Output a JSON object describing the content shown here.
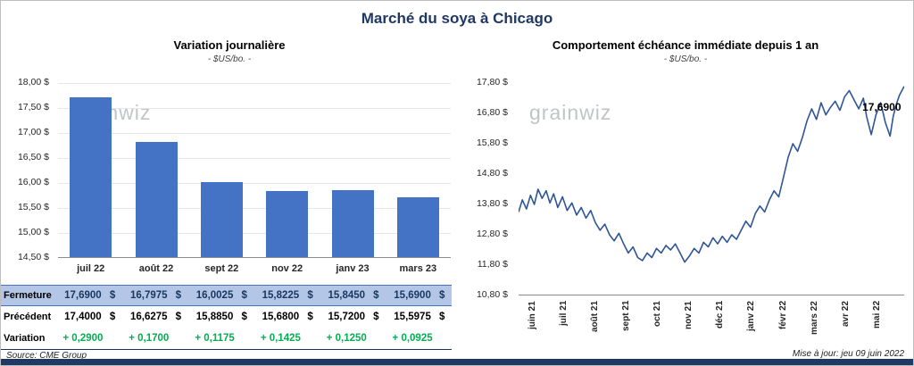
{
  "page_title": "Marché du soya à Chicago",
  "watermark": "grainwiz",
  "footer": {
    "source": "Source: CME Group",
    "updated": "Mise à jour: jeu 09 juin 2022"
  },
  "colors": {
    "bar": "#4472C4",
    "line": "#2F5597",
    "table_highlight": "#B4C6E7",
    "table_highlight_border": "#4472C4",
    "variation_green": "#00B050",
    "accent_dark": "#1F3864"
  },
  "chart_data": [
    {
      "type": "bar",
      "title": "Variation journalière",
      "subtitle": "- $US/bo. -",
      "categories": [
        "juil 22",
        "août 22",
        "sept 22",
        "nov 22",
        "janv 23",
        "mars 23"
      ],
      "values": [
        17.69,
        16.7975,
        16.0025,
        15.8225,
        15.845,
        15.69
      ],
      "ylim": [
        14.5,
        18.0
      ],
      "ytick_values": [
        18.0,
        17.5,
        17.0,
        16.5,
        16.0,
        15.5,
        15.0,
        14.5
      ],
      "ytick_labels": [
        "18,00 $",
        "17,50 $",
        "17,00 $",
        "16,50 $",
        "16,00 $",
        "15,50 $",
        "15,00 $",
        "14,50 $"
      ],
      "grid": true,
      "legend": "none"
    },
    {
      "type": "line",
      "title": "Comportement échéance immédiate depuis 1 an",
      "subtitle": "- $US/bo. -",
      "x_labels": [
        "juin 21",
        "juil 21",
        "août 21",
        "sept 21",
        "oct 21",
        "nov 21",
        "déc 21",
        "janv 22",
        "févr 22",
        "mars 22",
        "avr 22",
        "mai 22"
      ],
      "x_max": 12.3,
      "ylim": [
        10.8,
        17.8
      ],
      "ytick_values": [
        17.8,
        16.8,
        15.8,
        14.8,
        13.8,
        12.8,
        11.8,
        10.8
      ],
      "ytick_labels": [
        "17,80 $",
        "16,80 $",
        "15,80 $",
        "14,80 $",
        "13,80 $",
        "12,80 $",
        "11,80 $",
        "10,80 $"
      ],
      "grid": false,
      "legend": "none",
      "annotation": {
        "text": "17,6900",
        "x": 12.2,
        "y": 17.0
      },
      "points": [
        [
          0.0,
          13.55
        ],
        [
          0.12,
          13.95
        ],
        [
          0.25,
          13.65
        ],
        [
          0.38,
          14.1
        ],
        [
          0.5,
          13.8
        ],
        [
          0.62,
          14.3
        ],
        [
          0.75,
          14.0
        ],
        [
          0.88,
          14.25
        ],
        [
          1.0,
          13.85
        ],
        [
          1.12,
          14.15
        ],
        [
          1.25,
          13.7
        ],
        [
          1.4,
          14.05
        ],
        [
          1.55,
          13.6
        ],
        [
          1.7,
          13.85
        ],
        [
          1.85,
          13.45
        ],
        [
          2.0,
          13.7
        ],
        [
          2.15,
          13.35
        ],
        [
          2.3,
          13.6
        ],
        [
          2.45,
          13.2
        ],
        [
          2.6,
          12.95
        ],
        [
          2.75,
          13.15
        ],
        [
          2.9,
          12.8
        ],
        [
          3.05,
          12.6
        ],
        [
          3.2,
          12.85
        ],
        [
          3.35,
          12.5
        ],
        [
          3.5,
          12.2
        ],
        [
          3.65,
          12.4
        ],
        [
          3.8,
          12.05
        ],
        [
          3.95,
          11.95
        ],
        [
          4.1,
          12.2
        ],
        [
          4.25,
          12.05
        ],
        [
          4.4,
          12.35
        ],
        [
          4.55,
          12.2
        ],
        [
          4.7,
          12.45
        ],
        [
          4.85,
          12.3
        ],
        [
          5.0,
          12.5
        ],
        [
          5.15,
          12.2
        ],
        [
          5.3,
          11.9
        ],
        [
          5.45,
          12.1
        ],
        [
          5.6,
          12.35
        ],
        [
          5.75,
          12.2
        ],
        [
          5.9,
          12.55
        ],
        [
          6.05,
          12.4
        ],
        [
          6.2,
          12.7
        ],
        [
          6.35,
          12.5
        ],
        [
          6.5,
          12.75
        ],
        [
          6.65,
          12.55
        ],
        [
          6.8,
          12.8
        ],
        [
          6.95,
          12.65
        ],
        [
          7.1,
          12.95
        ],
        [
          7.25,
          13.25
        ],
        [
          7.4,
          13.05
        ],
        [
          7.55,
          13.5
        ],
        [
          7.7,
          13.75
        ],
        [
          7.85,
          13.55
        ],
        [
          8.0,
          13.95
        ],
        [
          8.15,
          14.25
        ],
        [
          8.3,
          14.05
        ],
        [
          8.45,
          14.7
        ],
        [
          8.6,
          15.35
        ],
        [
          8.75,
          15.8
        ],
        [
          8.9,
          15.55
        ],
        [
          9.05,
          16.0
        ],
        [
          9.2,
          16.55
        ],
        [
          9.35,
          16.95
        ],
        [
          9.5,
          16.6
        ],
        [
          9.65,
          17.15
        ],
        [
          9.8,
          16.75
        ],
        [
          9.95,
          17.0
        ],
        [
          10.1,
          17.2
        ],
        [
          10.25,
          16.9
        ],
        [
          10.4,
          17.35
        ],
        [
          10.55,
          17.55
        ],
        [
          10.7,
          17.25
        ],
        [
          10.85,
          16.95
        ],
        [
          11.0,
          17.3
        ],
        [
          11.1,
          16.7
        ],
        [
          11.25,
          16.1
        ],
        [
          11.4,
          16.75
        ],
        [
          11.55,
          17.15
        ],
        [
          11.7,
          16.5
        ],
        [
          11.85,
          16.05
        ],
        [
          11.95,
          16.7
        ],
        [
          12.05,
          17.1
        ],
        [
          12.15,
          17.4
        ],
        [
          12.3,
          17.69
        ]
      ]
    }
  ],
  "table": {
    "rows": [
      {
        "label": "Fermeture",
        "suffix": "$",
        "highlight": true,
        "variation": false,
        "values": [
          "17,6900",
          "16,7975",
          "16,0025",
          "15,8225",
          "15,8450",
          "15,6900"
        ]
      },
      {
        "label": "Précédent",
        "suffix": "$",
        "highlight": false,
        "variation": false,
        "values": [
          "17,4000",
          "16,6275",
          "15,8850",
          "15,6800",
          "15,7200",
          "15,5975"
        ]
      },
      {
        "label": "Variation",
        "suffix": "",
        "highlight": false,
        "variation": true,
        "values": [
          "+ 0,2900",
          "+ 0,1700",
          "+ 0,1175",
          "+ 0,1425",
          "+ 0,1250",
          "+ 0,0925"
        ]
      }
    ]
  }
}
